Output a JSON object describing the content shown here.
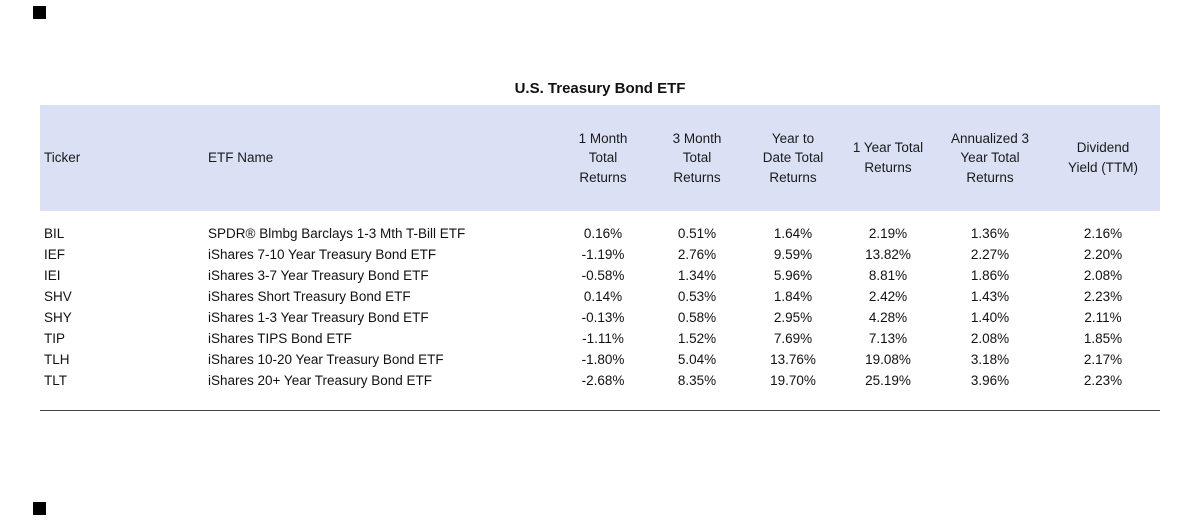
{
  "chart_data": {
    "type": "table",
    "title": "U.S. Treasury Bond ETF",
    "columns": [
      "Ticker",
      "ETF Name",
      "1 Month\nTotal\nReturns",
      "3 Month\nTotal\nReturns",
      "Year to\nDate Total\nReturns",
      "1 Year Total\nReturns",
      "Annualized 3\nYear Total\nReturns",
      "Dividend\nYield (TTM)"
    ],
    "rows": [
      [
        "BIL",
        "SPDR® Blmbg Barclays 1-3 Mth T-Bill ETF",
        "0.16%",
        "0.51%",
        "1.64%",
        "2.19%",
        "1.36%",
        "2.16%"
      ],
      [
        "IEF",
        "iShares 7-10 Year Treasury Bond ETF",
        "-1.19%",
        "2.76%",
        "9.59%",
        "13.82%",
        "2.27%",
        "2.20%"
      ],
      [
        "IEI",
        "iShares 3-7 Year Treasury Bond ETF",
        "-0.58%",
        "1.34%",
        "5.96%",
        "8.81%",
        "1.86%",
        "2.08%"
      ],
      [
        "SHV",
        "iShares Short Treasury Bond ETF",
        "0.14%",
        "0.53%",
        "1.84%",
        "2.42%",
        "1.43%",
        "2.23%"
      ],
      [
        "SHY",
        "iShares 1-3 Year Treasury Bond ETF",
        "-0.13%",
        "0.58%",
        "2.95%",
        "4.28%",
        "1.40%",
        "2.11%"
      ],
      [
        "TIP",
        "iShares TIPS Bond ETF",
        "-1.11%",
        "1.52%",
        "7.69%",
        "7.13%",
        "2.08%",
        "1.85%"
      ],
      [
        "TLH",
        "iShares 10-20 Year Treasury Bond ETF",
        "-1.80%",
        "5.04%",
        "13.76%",
        "19.08%",
        "3.18%",
        "2.17%"
      ],
      [
        "TLT",
        "iShares 20+ Year Treasury Bond ETF",
        "-2.68%",
        "8.35%",
        "19.70%",
        "25.19%",
        "3.96%",
        "2.23%"
      ]
    ],
    "style": {
      "header_bg": "#dbe1f5",
      "text_color": "#1a1a1a"
    }
  }
}
